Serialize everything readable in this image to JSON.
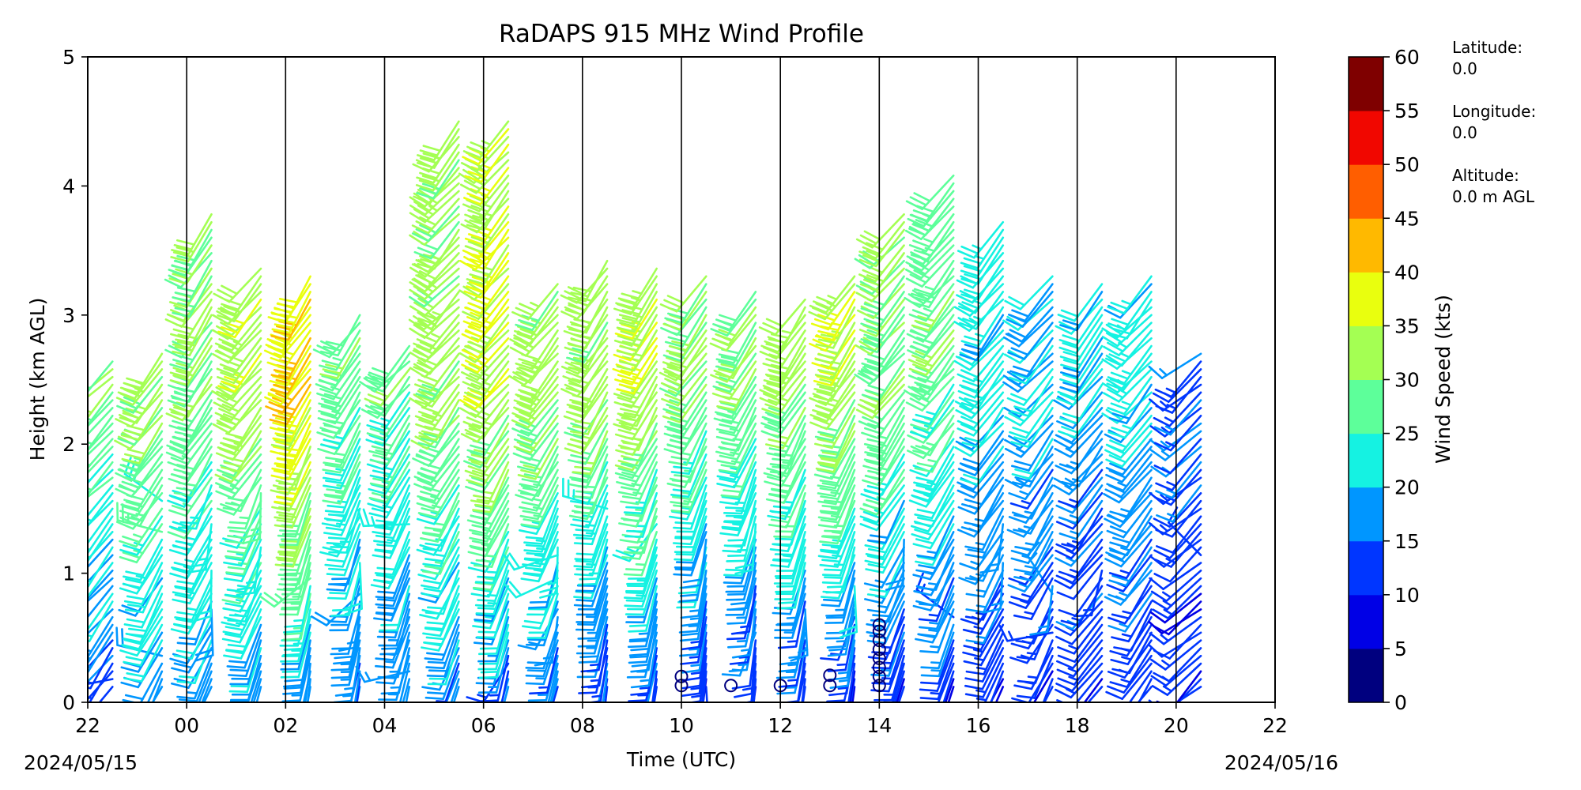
{
  "chart_data": {
    "type": "wind-barb profile",
    "title": "RaDAPS 915 MHz Wind Profile",
    "xlabel": "Time (UTC)",
    "ylabel": "Height (km AGL)",
    "x_tick_labels": [
      "22",
      "00",
      "02",
      "04",
      "06",
      "08",
      "10",
      "12",
      "14",
      "16",
      "18",
      "20",
      "22"
    ],
    "x_tick_hours": [
      -2,
      0,
      2,
      4,
      6,
      8,
      10,
      12,
      14,
      16,
      18,
      20,
      22
    ],
    "xlim_hours": [
      -2,
      22
    ],
    "date_start": "2024/05/15",
    "date_end": "2024/05/16",
    "ylim_km": [
      0,
      5
    ],
    "y_tick_labels": [
      "0",
      "1",
      "2",
      "3",
      "4",
      "5"
    ],
    "y_ticks_km": [
      0,
      1,
      2,
      3,
      4,
      5
    ],
    "vertical_lines_hours": [
      0,
      2,
      4,
      6,
      8,
      10,
      12,
      14,
      16,
      18,
      20
    ],
    "colorbar": {
      "label": "Wind Speed (kts)",
      "ticks": [
        "0",
        "5",
        "10",
        "15",
        "20",
        "25",
        "30",
        "35",
        "40",
        "45",
        "50",
        "55",
        "60"
      ],
      "colors": [
        "#00007f",
        "#0000e6",
        "#0036ff",
        "#0096ff",
        "#15f2e2",
        "#5dff9a",
        "#a4ff53",
        "#e9ff0e",
        "#ffb900",
        "#ff5e00",
        "#f10700",
        "#7f0000"
      ]
    },
    "profiles": [
      {
        "time": -1.5,
        "top_km": 2.68,
        "low": [
          13,
          20,
          240
        ],
        "high": [
          30,
          25,
          250
        ]
      },
      {
        "time": -0.5,
        "top_km": 2.7,
        "low": [
          15,
          10,
          230
        ],
        "high": [
          32,
          25,
          245
        ]
      },
      {
        "time": 0.5,
        "top_km": 3.8,
        "low": [
          16,
          10,
          230
        ],
        "high": [
          30,
          28,
          240
        ]
      },
      {
        "time": 1.5,
        "top_km": 3.4,
        "low": [
          17,
          18,
          220
        ],
        "high": [
          33,
          26,
          245
        ]
      },
      {
        "time": 2.5,
        "top_km": 3.3,
        "low": [
          15,
          15,
          200
        ],
        "high": [
          40,
          30,
          240
        ]
      },
      {
        "time": 3.5,
        "top_km": 3.05,
        "low": [
          15,
          12,
          200
        ],
        "high": [
          28,
          22,
          240
        ]
      },
      {
        "time": 4.5,
        "top_km": 2.8,
        "low": [
          15,
          12,
          210
        ],
        "high": [
          28,
          22,
          245
        ]
      },
      {
        "time": 5.5,
        "top_km": 4.5,
        "low": [
          15,
          10,
          220
        ],
        "high": [
          32,
          24,
          245
        ]
      },
      {
        "time": 6.5,
        "top_km": 4.5,
        "low": [
          14,
          10,
          210
        ],
        "high": [
          35,
          28,
          245
        ]
      },
      {
        "time": 7.5,
        "top_km": 3.25,
        "low": [
          14,
          10,
          210
        ],
        "high": [
          32,
          28,
          245
        ]
      },
      {
        "time": 8.5,
        "top_km": 3.45,
        "low": [
          12,
          8,
          200
        ],
        "high": [
          32,
          26,
          240
        ]
      },
      {
        "time": 9.5,
        "top_km": 3.4,
        "low": [
          12,
          6,
          200
        ],
        "high": [
          34,
          26,
          240
        ]
      },
      {
        "time": 10.5,
        "top_km": 3.3,
        "low": [
          10,
          6,
          190
        ],
        "high": [
          30,
          26,
          240
        ]
      },
      {
        "time": 11.5,
        "top_km": 3.2,
        "low": [
          10,
          6,
          190
        ],
        "high": [
          30,
          24,
          240
        ]
      },
      {
        "time": 12.5,
        "top_km": 3.15,
        "low": [
          10,
          6,
          200
        ],
        "high": [
          32,
          26,
          240
        ]
      },
      {
        "time": 13.5,
        "top_km": 3.3,
        "low": [
          10,
          6,
          200
        ],
        "high": [
          34,
          28,
          240
        ]
      },
      {
        "time": 14.5,
        "top_km": 3.8,
        "low": [
          10,
          6,
          220
        ],
        "high": [
          30,
          26,
          245
        ]
      },
      {
        "time": 15.5,
        "top_km": 4.1,
        "low": [
          10,
          6,
          220
        ],
        "high": [
          28,
          24,
          245
        ]
      },
      {
        "time": 16.5,
        "top_km": 3.72,
        "low": [
          10,
          8,
          230
        ],
        "high": [
          22,
          20,
          245
        ]
      },
      {
        "time": 17.5,
        "top_km": 3.3,
        "low": [
          10,
          8,
          230
        ],
        "high": [
          20,
          18,
          245
        ]
      },
      {
        "time": 18.5,
        "top_km": 3.25,
        "low": [
          10,
          8,
          240
        ],
        "high": [
          20,
          18,
          245
        ]
      },
      {
        "time": 19.5,
        "top_km": 3.35,
        "low": [
          10,
          8,
          240
        ],
        "high": [
          22,
          18,
          245
        ]
      },
      {
        "time": 20.5,
        "top_km": 2.75,
        "low": [
          10,
          8,
          250
        ],
        "high": [
          15,
          12,
          250
        ]
      }
    ],
    "calm_markers": [
      {
        "time": 10.0,
        "height_km": 0.13
      },
      {
        "time": 10.0,
        "height_km": 0.2
      },
      {
        "time": 11.0,
        "height_km": 0.13
      },
      {
        "time": 12.0,
        "height_km": 0.13
      },
      {
        "time": 13.0,
        "height_km": 0.13
      },
      {
        "time": 13.0,
        "height_km": 0.21
      },
      {
        "time": 14.0,
        "height_km": 0.13
      },
      {
        "time": 14.0,
        "height_km": 0.2
      },
      {
        "time": 14.0,
        "height_km": 0.27
      },
      {
        "time": 14.0,
        "height_km": 0.34
      },
      {
        "time": 14.0,
        "height_km": 0.41
      },
      {
        "time": 14.0,
        "height_km": 0.48
      },
      {
        "time": 14.0,
        "height_km": 0.55
      },
      {
        "time": 14.0,
        "height_km": 0.6
      }
    ]
  },
  "station_info": {
    "latitude_label": "Latitude:",
    "latitude_value": "0.0",
    "longitude_label": "Longitude:",
    "longitude_value": "0.0",
    "altitude_label": "Altitude:",
    "altitude_value": "0.0 m AGL"
  }
}
